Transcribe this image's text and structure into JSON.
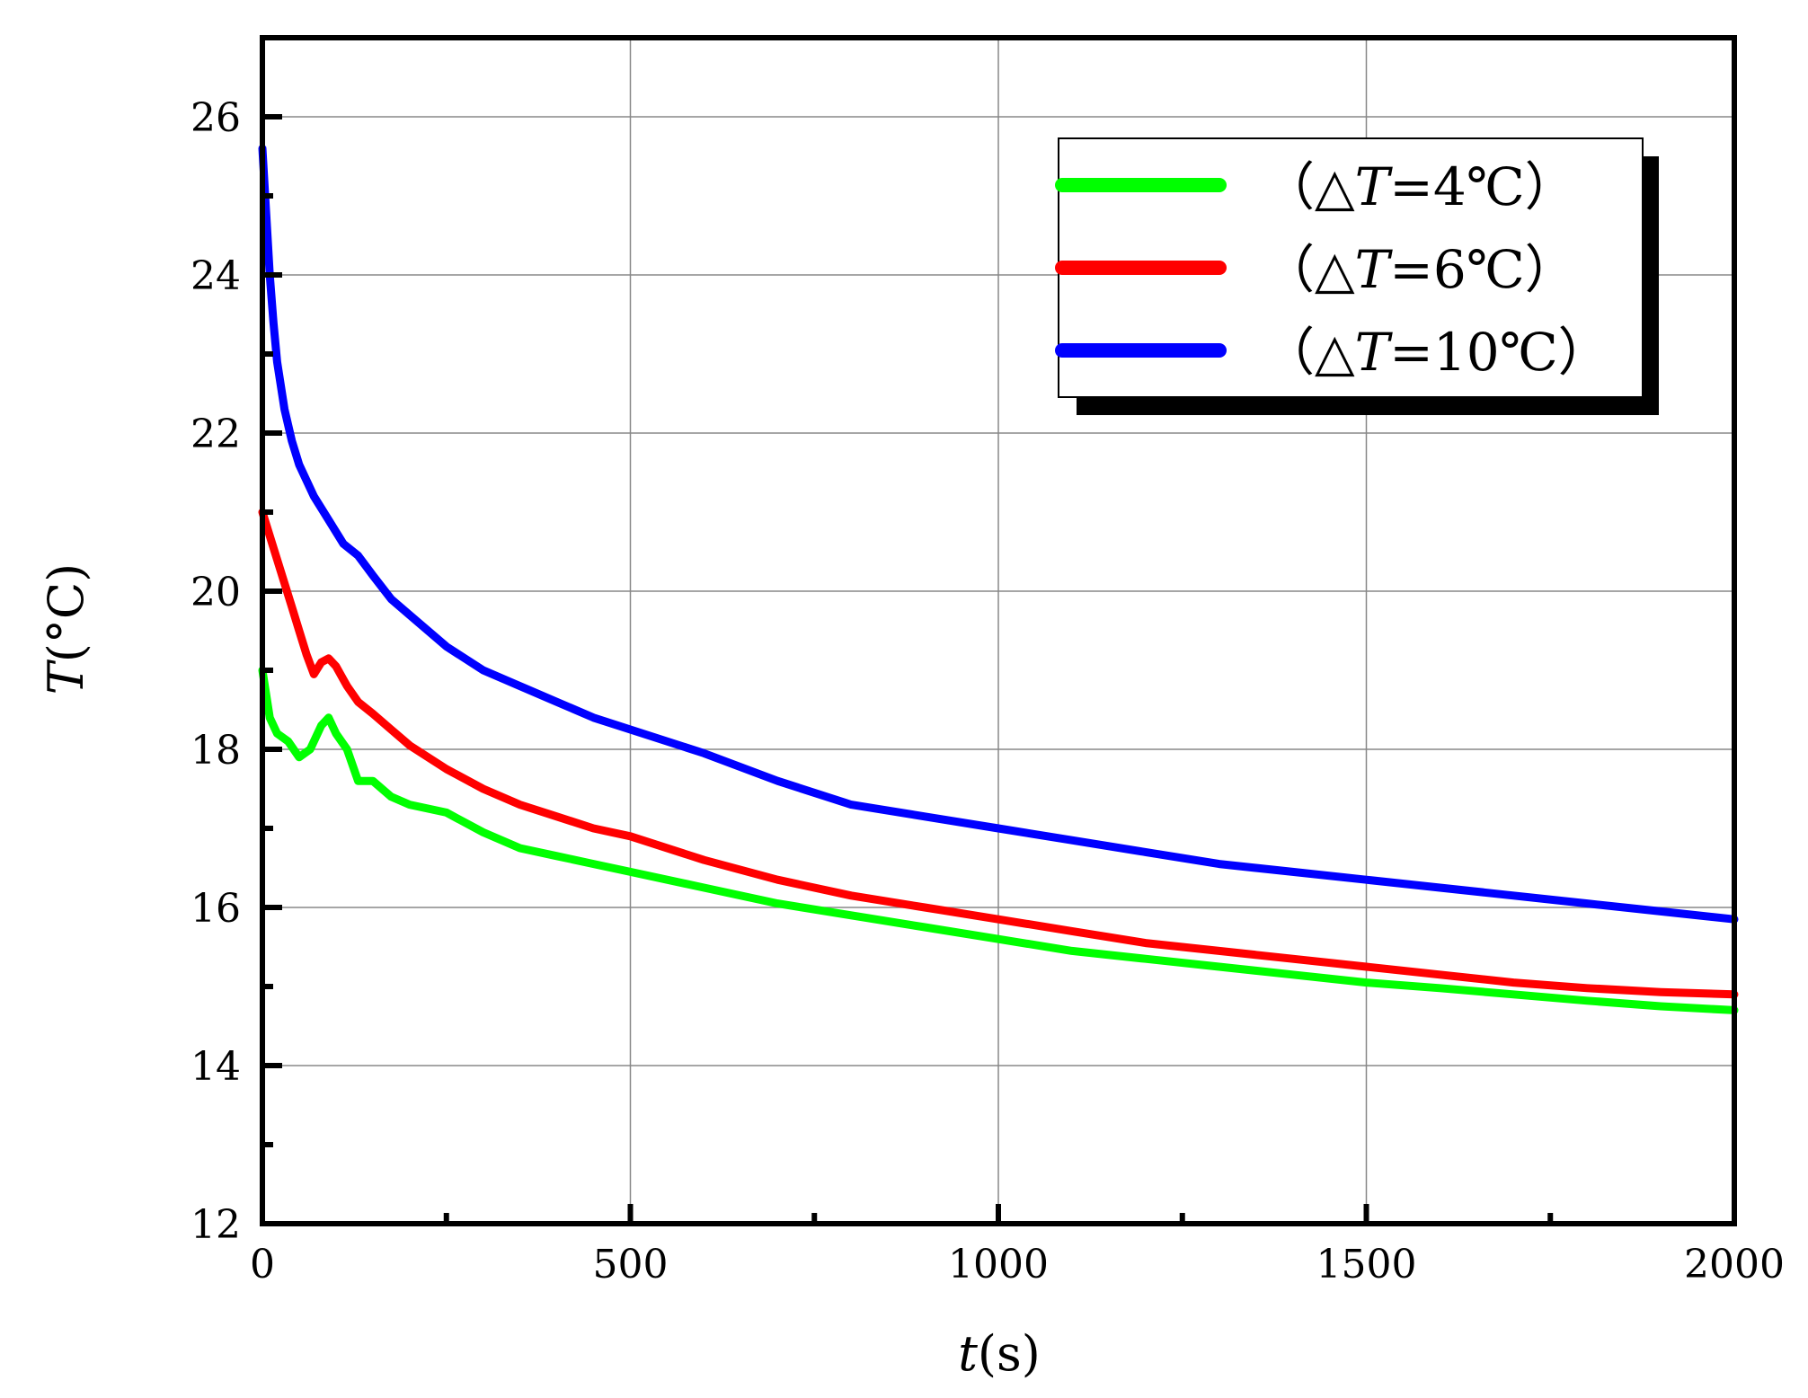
{
  "chart_data": {
    "type": "line",
    "title": "",
    "xlabel": {
      "italic": "t",
      "rest": "(s)"
    },
    "ylabel": {
      "italic": "T",
      "rest": "(°C)"
    },
    "xlim": [
      0,
      2000
    ],
    "ylim": [
      12,
      27
    ],
    "xticks": [
      "0",
      "500",
      "1000",
      "1500",
      "2000"
    ],
    "yticks": [
      "12",
      "14",
      "16",
      "18",
      "20",
      "22",
      "24",
      "26"
    ],
    "grid": true,
    "legend_position": "top-right",
    "legend_labels": [
      {
        "prefix": "（△",
        "italic": "T",
        "suffix": "=4℃）"
      },
      {
        "prefix": "（△",
        "italic": "T",
        "suffix": "=6℃）"
      },
      {
        "prefix": "（△",
        "italic": "T",
        "suffix": "=10℃）"
      }
    ],
    "series": [
      {
        "color": "#00ff00",
        "x": [
          0,
          10,
          20,
          35,
          50,
          65,
          80,
          90,
          100,
          115,
          130,
          150,
          175,
          200,
          250,
          300,
          350,
          400,
          450,
          500,
          600,
          700,
          800,
          900,
          1000,
          1100,
          1200,
          1300,
          1400,
          1500,
          1600,
          1700,
          1800,
          1900,
          2000
        ],
        "y": [
          19.0,
          18.4,
          18.2,
          18.1,
          17.9,
          18.0,
          18.3,
          18.4,
          18.2,
          18.0,
          17.6,
          17.6,
          17.4,
          17.3,
          17.2,
          16.95,
          16.75,
          16.65,
          16.55,
          16.45,
          16.25,
          16.05,
          15.9,
          15.75,
          15.6,
          15.45,
          15.35,
          15.25,
          15.15,
          15.05,
          14.98,
          14.9,
          14.82,
          14.75,
          14.7
        ]
      },
      {
        "color": "#ff0000",
        "x": [
          0,
          10,
          20,
          30,
          40,
          50,
          60,
          70,
          80,
          90,
          100,
          115,
          130,
          150,
          175,
          200,
          250,
          300,
          350,
          400,
          450,
          500,
          600,
          700,
          800,
          900,
          1000,
          1100,
          1200,
          1300,
          1400,
          1500,
          1600,
          1700,
          1800,
          1900,
          2000
        ],
        "y": [
          21.0,
          20.7,
          20.4,
          20.1,
          19.8,
          19.5,
          19.2,
          18.95,
          19.1,
          19.15,
          19.05,
          18.8,
          18.6,
          18.45,
          18.25,
          18.05,
          17.75,
          17.5,
          17.3,
          17.15,
          17.0,
          16.9,
          16.6,
          16.35,
          16.15,
          16.0,
          15.85,
          15.7,
          15.55,
          15.45,
          15.35,
          15.25,
          15.15,
          15.05,
          14.98,
          14.93,
          14.9
        ]
      },
      {
        "color": "#0000ff",
        "x": [
          0,
          5,
          10,
          15,
          20,
          30,
          40,
          50,
          70,
          90,
          110,
          130,
          150,
          175,
          200,
          250,
          300,
          350,
          400,
          450,
          500,
          600,
          700,
          800,
          900,
          1000,
          1100,
          1200,
          1300,
          1400,
          1500,
          1600,
          1700,
          1800,
          1900,
          2000
        ],
        "y": [
          25.6,
          24.8,
          24.0,
          23.4,
          22.9,
          22.3,
          21.9,
          21.6,
          21.2,
          20.9,
          20.6,
          20.45,
          20.2,
          19.9,
          19.7,
          19.3,
          19.0,
          18.8,
          18.6,
          18.4,
          18.25,
          17.95,
          17.6,
          17.3,
          17.15,
          17.0,
          16.85,
          16.7,
          16.55,
          16.45,
          16.35,
          16.25,
          16.15,
          16.05,
          15.95,
          15.85
        ]
      }
    ]
  }
}
